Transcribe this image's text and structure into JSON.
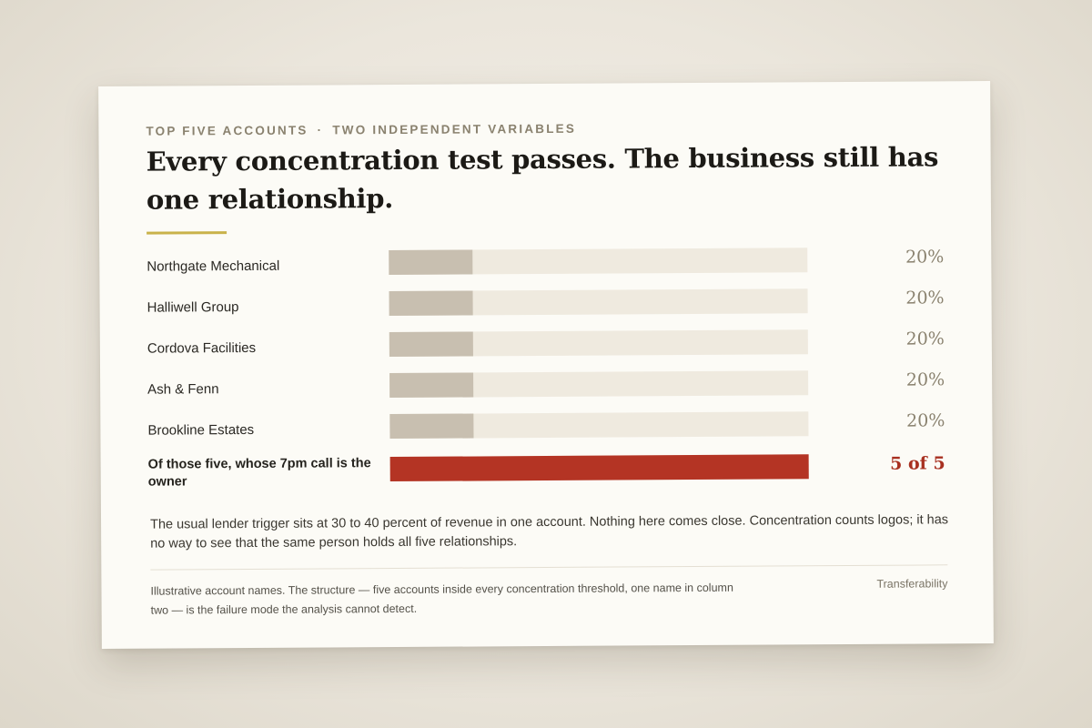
{
  "eyebrow": {
    "left": "TOP FIVE ACCOUNTS",
    "separator": "·",
    "right": "TWO INDEPENDENT VARIABLES"
  },
  "title": "Every concentration test passes. The business still has one relationship.",
  "chart_data": {
    "type": "bar",
    "orientation": "horizontal",
    "categories": [
      "Northgate Mechanical",
      "Halliwell Group",
      "Cordova Facilities",
      "Ash & Fenn",
      "Brookline Estates",
      "Of those five, whose 7pm call is the owner"
    ],
    "values": [
      0.2,
      0.2,
      0.2,
      0.2,
      0.2,
      1.0
    ],
    "value_labels": [
      "20%",
      "20%",
      "20%",
      "20%",
      "20%",
      "5 of 5"
    ],
    "xlim": [
      0,
      1
    ],
    "highlight_index": 5,
    "colors": {
      "bar": "#c8bfb0",
      "track": "#efeadf",
      "highlight": "#b43424"
    }
  },
  "note": "The usual lender trigger sits at 30 to 40 percent of revenue in one account. Nothing here comes close. Concentration counts logos; it has no way to see that the same person holds all five relationships.",
  "footnote": "Illustrative account names. The structure — five accounts inside every concentration threshold, one name in column two — is the failure mode the analysis cannot detect.",
  "tag": "Transferability"
}
